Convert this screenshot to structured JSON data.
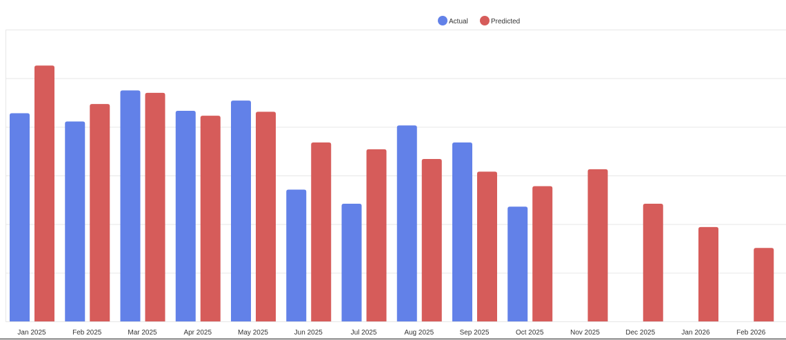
{
  "chart_data": {
    "type": "bar",
    "categories": [
      "Jan 2025",
      "Feb 2025",
      "Mar 2025",
      "Apr 2025",
      "May 2025",
      "Jun 2025",
      "Jul 2025",
      "Aug 2025",
      "Sep 2025",
      "Oct 2025",
      "Nov 2025",
      "Dec 2025",
      "Jan 2026",
      "Feb 2026"
    ],
    "series": [
      {
        "name": "Actual",
        "color": "#6281e8",
        "values": [
          42.8,
          41.1,
          47.5,
          43.3,
          45.4,
          27.1,
          24.2,
          40.3,
          36.8,
          23.6,
          null,
          null,
          null,
          null
        ]
      },
      {
        "name": "Predicted",
        "color": "#d65c5a",
        "values": [
          52.6,
          44.7,
          47.0,
          42.3,
          43.1,
          36.8,
          35.4,
          33.4,
          30.8,
          27.8,
          31.3,
          24.2,
          19.4,
          15.1
        ]
      }
    ],
    "ylim": [
      0,
      60
    ],
    "y_gridlines": [
      0,
      10,
      20,
      30,
      40,
      50,
      60
    ],
    "grid": true,
    "legend_position": "top-center",
    "title": "",
    "xlabel": "",
    "ylabel": ""
  }
}
